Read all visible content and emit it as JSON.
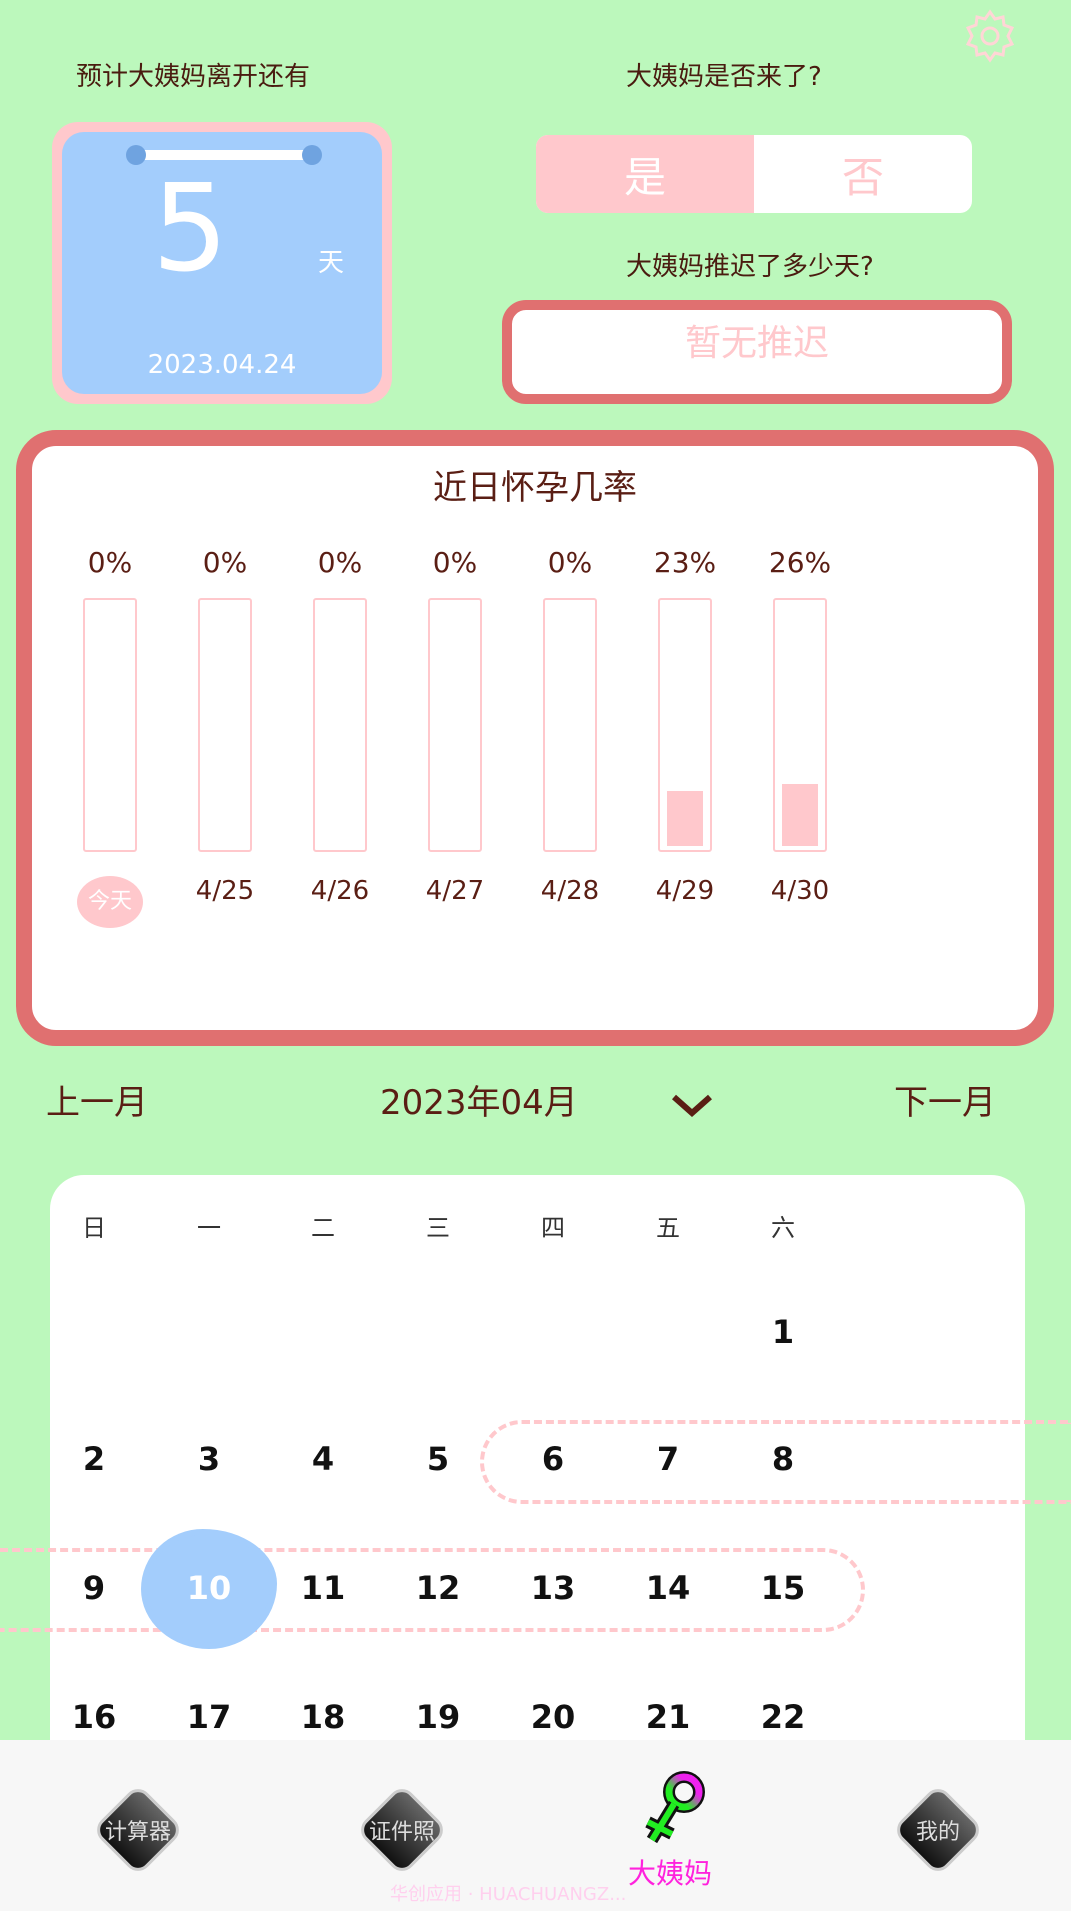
{
  "header": {
    "settings_icon": "gear-icon",
    "countdown_label": "预计大姨妈离开还有",
    "arrived_label": "大姨妈是否来了?",
    "delay_label": "大姨妈推迟了多少天?"
  },
  "countdown": {
    "days": "5",
    "unit": "天",
    "date": "2023.04.24"
  },
  "toggle": {
    "yes": "是",
    "no": "否",
    "selected": "yes"
  },
  "delay": {
    "value": "暂无推迟"
  },
  "pregnancy": {
    "title": "近日怀孕几率",
    "days": [
      {
        "pct": "0%",
        "value": 0,
        "label": "今天"
      },
      {
        "pct": "0%",
        "value": 0,
        "label": "4/25"
      },
      {
        "pct": "0%",
        "value": 0,
        "label": "4/26"
      },
      {
        "pct": "0%",
        "value": 0,
        "label": "4/27"
      },
      {
        "pct": "0%",
        "value": 0,
        "label": "4/28"
      },
      {
        "pct": "23%",
        "value": 23,
        "label": "4/29"
      },
      {
        "pct": "26%",
        "value": 26,
        "label": "4/30"
      }
    ]
  },
  "month_nav": {
    "prev": "上一月",
    "current": "2023年04月",
    "next": "下一月"
  },
  "calendar": {
    "weekdays": [
      "日",
      "一",
      "二",
      "三",
      "四",
      "五",
      "六"
    ],
    "first_weekday": 6,
    "visible_days": 22,
    "today": 10,
    "period_ranges": [
      [
        5,
        8
      ],
      [
        9,
        14
      ]
    ],
    "colors": {
      "period": "#ffc8cc",
      "today": "#a3cdfc"
    }
  },
  "bottom_nav": {
    "items": [
      {
        "label": "计算器"
      },
      {
        "label": "证件照"
      },
      {
        "label": "大姨妈",
        "active": true,
        "color": "#ff22dd"
      },
      {
        "label": "我的"
      }
    ]
  },
  "watermark": "华创应用 · HUACHUANGZ..."
}
